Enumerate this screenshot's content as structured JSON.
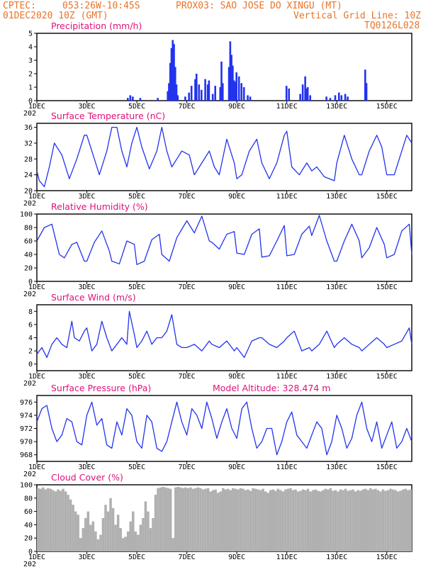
{
  "header": {
    "source": "CPTEC:",
    "location": "053:26W-10:45S",
    "station": "PROX03: SAO JOSE DO XINGU (MT)",
    "run": "01DEC2020 10Z (GMT)",
    "grid_note": "Vertical Grid Line: 10Z",
    "code": "TQ0126L028"
  },
  "x_axis": {
    "tick_labels": [
      "1DEC",
      "3DEC",
      "5DEC",
      "7DEC",
      "9DEC",
      "11DEC",
      "13DEC",
      "15DEC"
    ],
    "year_fragment": "202",
    "start_day": 1,
    "end_day": 16.0
  },
  "colors": {
    "line": "#2233ee",
    "title": "#e0107a",
    "header": "#e8742a",
    "cloud": "#b0b0b0"
  },
  "chart_data": [
    {
      "type": "bar",
      "title": "Precipitation (mm/h)",
      "ylim": [
        0,
        5
      ],
      "yticks": [
        0,
        1,
        2,
        3,
        4,
        5
      ],
      "x": [
        4.6,
        4.7,
        4.8,
        5.1,
        5.8,
        6.2,
        6.25,
        6.3,
        6.35,
        6.4,
        6.45,
        6.5,
        6.55,
        6.6,
        6.9,
        7.05,
        7.15,
        7.3,
        7.35,
        7.45,
        7.55,
        7.7,
        7.8,
        7.85,
        8.0,
        8.1,
        8.3,
        8.35,
        8.4,
        8.65,
        8.7,
        8.75,
        8.8,
        8.85,
        8.9,
        8.95,
        9.05,
        9.15,
        9.25,
        9.4,
        9.5,
        10.95,
        11.05,
        11.5,
        11.6,
        11.7,
        11.75,
        11.8,
        11.9,
        12.55,
        12.7,
        12.9,
        13.05,
        13.15,
        13.3,
        13.4,
        14.1,
        14.15
      ],
      "values": [
        0.2,
        0.4,
        0.3,
        0.2,
        0.2,
        0.7,
        1.3,
        2.8,
        3.9,
        4.5,
        4.2,
        2.5,
        1.2,
        0.4,
        0.3,
        0.6,
        1.1,
        1.6,
        2.0,
        1.2,
        0.8,
        1.6,
        1.2,
        1.5,
        0.5,
        1.1,
        1.0,
        2.9,
        1.3,
        2.5,
        4.4,
        3.4,
        2.6,
        1.5,
        1.4,
        2.1,
        1.8,
        1.3,
        1.0,
        0.4,
        0.3,
        1.1,
        0.9,
        0.5,
        1.2,
        1.8,
        0.9,
        1.0,
        0.4,
        0.3,
        0.2,
        0.4,
        0.6,
        0.4,
        0.5,
        0.3,
        2.3,
        1.3
      ]
    },
    {
      "type": "line",
      "title": "Surface Temperature (nC)",
      "ylim": [
        20,
        37
      ],
      "yticks": [
        20,
        24,
        28,
        32,
        36
      ],
      "x": [
        1.0,
        1.1,
        1.3,
        1.5,
        1.7,
        2.0,
        2.3,
        2.6,
        2.9,
        3.0,
        3.2,
        3.5,
        3.8,
        4.0,
        4.2,
        4.4,
        4.6,
        4.8,
        5.0,
        5.2,
        5.5,
        5.8,
        6.0,
        6.2,
        6.4,
        6.6,
        6.8,
        7.1,
        7.3,
        7.6,
        7.9,
        8.1,
        8.3,
        8.6,
        8.9,
        9.0,
        9.2,
        9.5,
        9.8,
        10.0,
        10.3,
        10.6,
        10.9,
        11.0,
        11.2,
        11.5,
        11.8,
        12.0,
        12.2,
        12.5,
        12.9,
        13.0,
        13.3,
        13.6,
        13.9,
        14.0,
        14.3,
        14.6,
        14.8,
        15.0,
        15.3,
        15.6,
        15.8,
        16.0
      ],
      "values": [
        25,
        22.5,
        21,
        26,
        32,
        29,
        23,
        28,
        34,
        34,
        30,
        24,
        30,
        36,
        36,
        30,
        26,
        32,
        36,
        31,
        25.5,
        30,
        36,
        30,
        26,
        28,
        30,
        29,
        24,
        27,
        30,
        26,
        24,
        33,
        27,
        23,
        24,
        30,
        33,
        27,
        23,
        27,
        34,
        35,
        26,
        24,
        27,
        25,
        26,
        23.5,
        22.5,
        27,
        34,
        28,
        24,
        24,
        30,
        34,
        31,
        24,
        24,
        30,
        34,
        32
      ]
    },
    {
      "type": "line",
      "title": "Relative Humidity (%)",
      "ylim": [
        0,
        100
      ],
      "yticks": [
        0,
        20,
        40,
        60,
        80,
        100
      ],
      "x": [
        1.0,
        1.3,
        1.6,
        1.9,
        2.1,
        2.4,
        2.6,
        2.9,
        3.0,
        3.3,
        3.6,
        3.9,
        4.0,
        4.3,
        4.6,
        4.9,
        5.0,
        5.3,
        5.6,
        5.9,
        6.0,
        6.3,
        6.6,
        7.0,
        7.3,
        7.6,
        7.9,
        8.0,
        8.3,
        8.6,
        8.9,
        9.0,
        9.3,
        9.6,
        9.9,
        10.0,
        10.3,
        10.6,
        10.9,
        11.0,
        11.3,
        11.6,
        11.9,
        12.0,
        12.3,
        12.6,
        12.9,
        13.0,
        13.3,
        13.6,
        13.9,
        14.0,
        14.3,
        14.6,
        14.9,
        15.0,
        15.3,
        15.6,
        15.9,
        16.0
      ],
      "values": [
        60,
        80,
        85,
        40,
        35,
        55,
        58,
        30,
        30,
        58,
        75,
        45,
        30,
        26,
        60,
        55,
        25,
        30,
        62,
        70,
        40,
        30,
        65,
        90,
        72,
        97,
        60,
        58,
        48,
        70,
        74,
        42,
        40,
        70,
        78,
        36,
        38,
        60,
        83,
        38,
        40,
        70,
        82,
        68,
        98,
        60,
        30,
        30,
        60,
        85,
        60,
        35,
        50,
        80,
        55,
        35,
        40,
        75,
        85,
        40
      ]
    },
    {
      "type": "line",
      "title": "Surface Wind (m/s)",
      "ylim": [
        -1,
        9
      ],
      "yticks": [
        0,
        2,
        4,
        6,
        8
      ],
      "x": [
        1.0,
        1.2,
        1.4,
        1.6,
        1.8,
        2.0,
        2.2,
        2.4,
        2.5,
        2.7,
        2.9,
        3.0,
        3.2,
        3.4,
        3.6,
        3.8,
        4.0,
        4.2,
        4.4,
        4.6,
        4.7,
        4.9,
        5.0,
        5.2,
        5.4,
        5.6,
        5.8,
        6.0,
        6.2,
        6.4,
        6.6,
        6.8,
        7.0,
        7.3,
        7.6,
        7.9,
        8.0,
        8.3,
        8.6,
        8.9,
        9.0,
        9.3,
        9.6,
        9.9,
        10.0,
        10.3,
        10.6,
        10.9,
        11.0,
        11.3,
        11.6,
        11.9,
        12.0,
        12.3,
        12.6,
        12.9,
        13.0,
        13.3,
        13.6,
        13.9,
        14.0,
        14.3,
        14.6,
        14.9,
        15.0,
        15.3,
        15.6,
        15.9,
        16.0
      ],
      "values": [
        1.5,
        2.5,
        1,
        3,
        4,
        3,
        2.5,
        6.5,
        4,
        3.5,
        5,
        5.5,
        2,
        3,
        6.5,
        4,
        2,
        3,
        4,
        3,
        8,
        4.5,
        2.5,
        3.5,
        5,
        3,
        4,
        4,
        5,
        7.5,
        3,
        2.5,
        2.5,
        3,
        2,
        3.5,
        3,
        2.5,
        3.5,
        2,
        2.5,
        1,
        3.5,
        4,
        4,
        3,
        2.5,
        3.5,
        4,
        5,
        2,
        2.5,
        2,
        3,
        5,
        2.5,
        3,
        4,
        3,
        2.5,
        2,
        3,
        4,
        3,
        2.5,
        3,
        3.5,
        5.5,
        3
      ]
    },
    {
      "type": "line",
      "title": "Surface Pressure (hPa)",
      "subtitle": "Model Altitude: 328.474 m",
      "ylim": [
        967,
        977
      ],
      "yticks": [
        968,
        970,
        972,
        974,
        976
      ],
      "x": [
        1.0,
        1.2,
        1.4,
        1.6,
        1.8,
        2.0,
        2.2,
        2.4,
        2.6,
        2.8,
        3.0,
        3.2,
        3.4,
        3.6,
        3.8,
        4.0,
        4.2,
        4.4,
        4.6,
        4.8,
        5.0,
        5.2,
        5.4,
        5.6,
        5.8,
        6.0,
        6.2,
        6.4,
        6.6,
        6.8,
        7.0,
        7.2,
        7.4,
        7.6,
        7.8,
        8.0,
        8.2,
        8.4,
        8.6,
        8.8,
        9.0,
        9.2,
        9.4,
        9.6,
        9.8,
        10.0,
        10.2,
        10.4,
        10.6,
        10.8,
        11.0,
        11.2,
        11.4,
        11.6,
        11.8,
        12.0,
        12.2,
        12.4,
        12.6,
        12.8,
        13.0,
        13.2,
        13.4,
        13.6,
        13.8,
        14.0,
        14.2,
        14.4,
        14.6,
        14.8,
        15.0,
        15.2,
        15.4,
        15.6,
        15.8,
        16.0
      ],
      "values": [
        973,
        975,
        975.5,
        972,
        970,
        971,
        973.5,
        973,
        970,
        969.5,
        974,
        976,
        972.5,
        973.5,
        969.5,
        969,
        973,
        971,
        975,
        974,
        970,
        969,
        974,
        973,
        969,
        968.5,
        970,
        973,
        976,
        973,
        971,
        975,
        974,
        972,
        976,
        973.5,
        970.5,
        973,
        975,
        972,
        970.5,
        975,
        976,
        972,
        969,
        970,
        972,
        972,
        968,
        970,
        973,
        974.5,
        971,
        970,
        969,
        971,
        973,
        972,
        968,
        970,
        974,
        972,
        969,
        970.5,
        974,
        976,
        972,
        970,
        973,
        969,
        971,
        973,
        969,
        970,
        972,
        970
      ]
    },
    {
      "type": "bar",
      "title": "Cloud Cover (%)",
      "ylim": [
        0,
        100
      ],
      "yticks": [
        0,
        20,
        40,
        60,
        80,
        100
      ],
      "x": [
        1.0,
        1.1,
        1.2,
        1.3,
        1.4,
        1.5,
        1.6,
        1.7,
        1.8,
        1.9,
        2.0,
        2.1,
        2.2,
        2.3,
        2.4,
        2.5,
        2.6,
        2.7,
        2.8,
        2.9,
        3.0,
        3.1,
        3.2,
        3.3,
        3.4,
        3.5,
        3.6,
        3.7,
        3.8,
        3.9,
        4.0,
        4.1,
        4.2,
        4.3,
        4.4,
        4.5,
        4.6,
        4.7,
        4.8,
        4.9,
        5.0,
        5.1,
        5.2,
        5.3,
        5.4,
        5.5,
        5.6,
        5.7,
        5.8,
        5.9,
        6.0,
        6.1,
        6.2,
        6.3,
        6.4,
        6.5,
        6.6,
        6.7,
        6.8,
        6.9,
        7.0,
        7.1,
        7.2,
        7.3,
        7.4,
        7.5,
        7.6,
        7.7,
        7.8,
        7.9,
        8.0,
        8.1,
        8.2,
        8.3,
        8.4,
        8.5,
        8.6,
        8.7,
        8.8,
        8.9,
        9.0,
        9.1,
        9.2,
        9.3,
        9.4,
        9.5,
        9.6,
        9.7,
        9.8,
        9.9,
        10.0,
        10.1,
        10.2,
        10.3,
        10.4,
        10.5,
        10.6,
        10.7,
        10.8,
        10.9,
        11.0,
        11.1,
        11.2,
        11.3,
        11.4,
        11.5,
        11.6,
        11.7,
        11.8,
        11.9,
        12.0,
        12.1,
        12.2,
        12.3,
        12.4,
        12.5,
        12.6,
        12.7,
        12.8,
        12.9,
        13.0,
        13.1,
        13.2,
        13.3,
        13.4,
        13.5,
        13.6,
        13.7,
        13.8,
        13.9,
        14.0,
        14.1,
        14.2,
        14.3,
        14.4,
        14.5,
        14.6,
        14.7,
        14.8,
        14.9,
        15.0,
        15.1,
        15.2,
        15.3,
        15.4,
        15.5,
        15.6,
        15.7,
        15.8,
        15.9
      ],
      "values": [
        95,
        94,
        96,
        93,
        95,
        94,
        92,
        90,
        93,
        91,
        94,
        90,
        85,
        78,
        70,
        60,
        55,
        20,
        35,
        50,
        60,
        40,
        45,
        30,
        18,
        25,
        50,
        70,
        60,
        80,
        65,
        40,
        55,
        35,
        20,
        22,
        30,
        45,
        60,
        30,
        25,
        40,
        50,
        75,
        60,
        35,
        50,
        85,
        95,
        96,
        97,
        96,
        95,
        94,
        20,
        96,
        97,
        96,
        95,
        96,
        95,
        96,
        94,
        95,
        96,
        95,
        93,
        94,
        95,
        90,
        92,
        93,
        88,
        90,
        95,
        93,
        94,
        92,
        95,
        94,
        93,
        95,
        94,
        92,
        93,
        91,
        95,
        94,
        93,
        92,
        94,
        90,
        88,
        92,
        93,
        91,
        94,
        92,
        90,
        93,
        94,
        95,
        92,
        93,
        90,
        91,
        93,
        92,
        94,
        90,
        92,
        93,
        91,
        90,
        92,
        94,
        93,
        95,
        91,
        92,
        90,
        93,
        92,
        94,
        91,
        92,
        93,
        90,
        92,
        91,
        93,
        94,
        92,
        95,
        93,
        94,
        92,
        90,
        93,
        91,
        92,
        94,
        93,
        92,
        90,
        91,
        93,
        94,
        92,
        93
      ]
    }
  ]
}
